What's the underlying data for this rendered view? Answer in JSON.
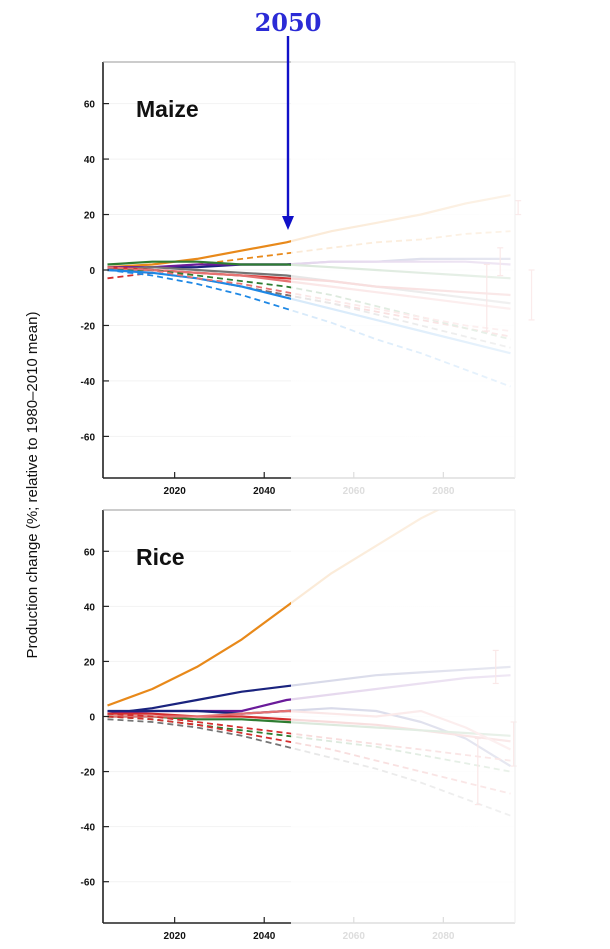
{
  "marker": {
    "label": "2050",
    "year": 2050,
    "color": "#1010c8"
  },
  "y_axis_label": "Production change (%; relative to 1980–2010 mean)",
  "colors": {
    "orange": "#e8891a",
    "navy": "#1a237e",
    "purple": "#6a1b9a",
    "red": "#d32f2f",
    "green": "#2e7d32",
    "gray": "#757575",
    "blue": "#1e88e5",
    "pink": "#e57373"
  },
  "chart_data": [
    {
      "type": "line",
      "title": "Maize",
      "xlabel": "",
      "ylabel": "Production change (%; relative to 1980–2010 mean)",
      "xlim": [
        2004,
        2096
      ],
      "ylim": [
        -75,
        75
      ],
      "xticks": [
        2020,
        2040,
        2060,
        2080
      ],
      "yticks": [
        -60,
        -40,
        -20,
        0,
        20,
        40,
        60
      ],
      "visible_until": 2050,
      "x": [
        2005,
        2015,
        2025,
        2035,
        2045,
        2055,
        2065,
        2075,
        2085,
        2095
      ],
      "series": [
        {
          "color": "orange",
          "dash": false,
          "values": [
            1,
            2,
            4,
            7,
            10,
            14,
            17,
            20,
            24,
            27
          ]
        },
        {
          "color": "orange",
          "dash": true,
          "values": [
            1,
            1,
            2,
            4,
            6,
            8,
            10,
            11,
            13,
            14
          ]
        },
        {
          "color": "navy",
          "dash": false,
          "values": [
            0,
            1,
            1,
            2,
            2,
            3,
            3,
            4,
            4,
            4
          ]
        },
        {
          "color": "purple",
          "dash": false,
          "values": [
            1,
            1,
            2,
            2,
            2,
            3,
            3,
            3,
            3,
            2
          ]
        },
        {
          "color": "green",
          "dash": false,
          "values": [
            2,
            3,
            3,
            2,
            2,
            1,
            0,
            -1,
            -2,
            -3
          ]
        },
        {
          "color": "gray",
          "dash": false,
          "values": [
            0,
            1,
            0,
            -1,
            -2,
            -4,
            -6,
            -8,
            -10,
            -12
          ]
        },
        {
          "color": "red",
          "dash": false,
          "values": [
            1,
            0,
            -1,
            -2,
            -3,
            -4,
            -6,
            -7,
            -8,
            -9
          ]
        },
        {
          "color": "pink",
          "dash": false,
          "values": [
            0,
            0,
            -1,
            -2,
            -4,
            -6,
            -8,
            -10,
            -12,
            -14
          ]
        },
        {
          "color": "red",
          "dash": true,
          "values": [
            -3,
            -1,
            -3,
            -6,
            -9,
            -12,
            -15,
            -18,
            -21,
            -24
          ]
        },
        {
          "color": "green",
          "dash": true,
          "values": [
            0,
            0,
            -2,
            -4,
            -6,
            -9,
            -13,
            -17,
            -21,
            -25
          ]
        },
        {
          "color": "gray",
          "dash": true,
          "values": [
            0,
            -1,
            -3,
            -6,
            -9,
            -12,
            -16,
            -20,
            -24,
            -28
          ]
        },
        {
          "color": "blue",
          "dash": false,
          "values": [
            0,
            -1,
            -3,
            -6,
            -10,
            -14,
            -18,
            -22,
            -26,
            -30
          ]
        },
        {
          "color": "blue",
          "dash": true,
          "values": [
            0,
            -2,
            -5,
            -9,
            -14,
            -19,
            -25,
            -30,
            -36,
            -42
          ]
        },
        {
          "color": "pink",
          "dash": true,
          "values": [
            1,
            0,
            -3,
            -5,
            -8,
            -11,
            -14,
            -17,
            -20,
            -22
          ]
        }
      ],
      "faded_ranges": [
        {
          "x": 2083,
          "low": -22,
          "high": 2
        },
        {
          "x": 2086,
          "low": -2,
          "high": 8
        },
        {
          "x": 2090,
          "low": 20,
          "high": 25
        },
        {
          "x": 2093,
          "low": -18,
          "high": 0
        }
      ]
    },
    {
      "type": "line",
      "title": "Rice",
      "xlabel": "",
      "ylabel": "Production change (%; relative to 1980–2010 mean)",
      "xlim": [
        2004,
        2096
      ],
      "ylim": [
        -75,
        75
      ],
      "xticks": [
        2020,
        2040,
        2060,
        2080
      ],
      "yticks": [
        -60,
        -40,
        -20,
        0,
        20,
        40,
        60
      ],
      "visible_until": 2050,
      "x": [
        2005,
        2015,
        2025,
        2035,
        2045,
        2055,
        2065,
        2075,
        2085,
        2095
      ],
      "series": [
        {
          "color": "orange",
          "dash": false,
          "values": [
            4,
            10,
            18,
            28,
            40,
            52,
            62,
            72,
            80,
            88
          ]
        },
        {
          "color": "navy",
          "dash": false,
          "values": [
            1,
            3,
            6,
            9,
            11,
            13,
            15,
            16,
            17,
            18
          ]
        },
        {
          "color": "purple",
          "dash": false,
          "values": [
            1,
            2,
            2,
            2,
            6,
            8,
            10,
            12,
            14,
            15
          ]
        },
        {
          "color": "navy",
          "dash": false,
          "values": [
            2,
            2,
            2,
            1,
            2,
            3,
            2,
            -2,
            -8,
            -18
          ]
        },
        {
          "color": "red",
          "dash": false,
          "values": [
            1,
            1,
            0,
            0,
            -1,
            -2,
            -3,
            -5,
            -7,
            -9
          ]
        },
        {
          "color": "green",
          "dash": false,
          "values": [
            0,
            0,
            -1,
            -1,
            -2,
            -3,
            -4,
            -5,
            -6,
            -7
          ]
        },
        {
          "color": "pink",
          "dash": false,
          "values": [
            0,
            0,
            0,
            1,
            2,
            1,
            0,
            2,
            -4,
            -12
          ]
        },
        {
          "color": "red",
          "dash": true,
          "values": [
            1,
            0,
            -2,
            -4,
            -6,
            -8,
            -10,
            -12,
            -14,
            -16
          ]
        },
        {
          "color": "green",
          "dash": true,
          "values": [
            0,
            -1,
            -3,
            -5,
            -7,
            -9,
            -11,
            -14,
            -17,
            -20
          ]
        },
        {
          "color": "gray",
          "dash": true,
          "values": [
            -1,
            -2,
            -4,
            -7,
            -11,
            -15,
            -19,
            -24,
            -30,
            -36
          ]
        },
        {
          "color": "red",
          "dash": true,
          "values": [
            0,
            -1,
            -3,
            -6,
            -9,
            -12,
            -16,
            -20,
            -24,
            -28
          ]
        }
      ],
      "faded_ranges": [
        {
          "x": 2081,
          "low": -32,
          "high": -8
        },
        {
          "x": 2085,
          "low": 12,
          "high": 24
        },
        {
          "x": 2089,
          "low": -18,
          "high": -2
        }
      ]
    }
  ]
}
